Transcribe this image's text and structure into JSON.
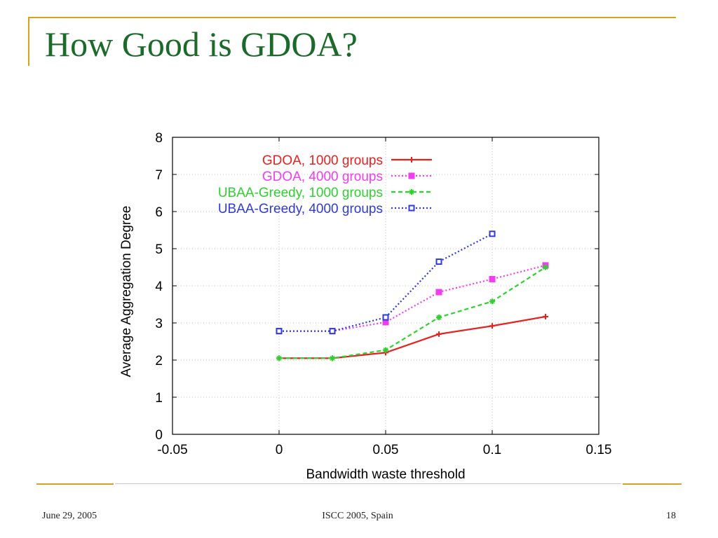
{
  "slide": {
    "title": "How Good is GDOA?",
    "footer_date": "June 29, 2005",
    "footer_center": "ISCC 2005, Spain",
    "footer_page": "18",
    "colors": {
      "title": "#1b6a2a",
      "accent_rule": "#d4a226"
    }
  },
  "chart_data": {
    "type": "line",
    "xlabel": "Bandwidth waste threshold",
    "ylabel": "Average Aggregation Degree",
    "xlim": [
      -0.05,
      0.15
    ],
    "ylim": [
      0,
      8
    ],
    "xticks": [
      -0.05,
      0,
      0.05,
      0.1,
      0.15
    ],
    "xtick_labels": [
      "-0.05",
      "0",
      "0.05",
      "0.1",
      "0.15"
    ],
    "yticks": [
      0,
      1,
      2,
      3,
      4,
      5,
      6,
      7,
      8
    ],
    "ytick_labels": [
      "0",
      "1",
      "2",
      "3",
      "4",
      "5",
      "6",
      "7",
      "8"
    ],
    "grid": true,
    "legend_position": "top-right",
    "series": [
      {
        "name": "GDOA, 1000 groups",
        "color": "#e8201e",
        "line": "solid",
        "marker": "plus",
        "x": [
          0,
          0.025,
          0.05,
          0.075,
          0.1,
          0.125
        ],
        "y": [
          2.05,
          2.05,
          2.2,
          2.7,
          2.92,
          3.17
        ]
      },
      {
        "name": "GDOA, 4000 groups",
        "color": "#f23cf2",
        "line": "dotted",
        "marker": "filled-square",
        "x": [
          0,
          0.025,
          0.05,
          0.075,
          0.1,
          0.125
        ],
        "y": [
          2.78,
          2.78,
          3.02,
          3.83,
          4.18,
          4.55
        ]
      },
      {
        "name": "UBAA-Greedy, 1000 groups",
        "color": "#2ed12e",
        "line": "dashed",
        "marker": "star",
        "x": [
          0,
          0.025,
          0.05,
          0.075,
          0.1,
          0.125
        ],
        "y": [
          2.05,
          2.05,
          2.27,
          3.15,
          3.58,
          4.5
        ]
      },
      {
        "name": "UBAA-Greedy, 4000 groups",
        "color": "#2f3bd6",
        "line": "dotted",
        "marker": "open-square",
        "x": [
          0,
          0.025,
          0.05,
          0.075,
          0.1
        ],
        "y": [
          2.78,
          2.78,
          3.15,
          4.65,
          5.4
        ]
      }
    ]
  }
}
